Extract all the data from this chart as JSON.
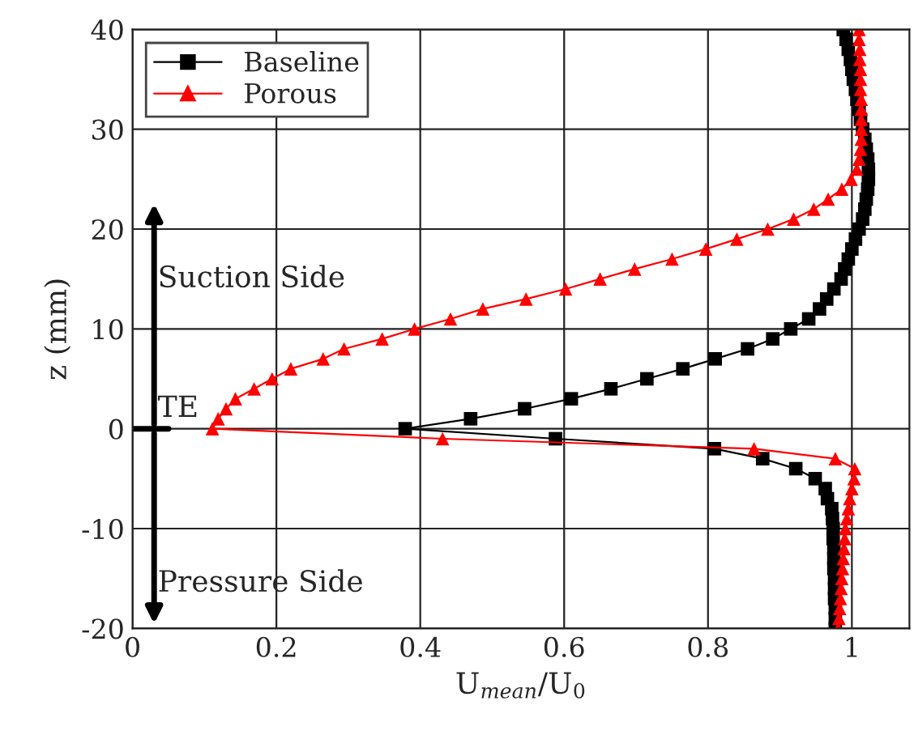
{
  "chart_data": {
    "type": "line",
    "xlabel": "U$_{mean}$/U$_{0}$",
    "ylabel": "z (mm)",
    "xlim": [
      0,
      1.08
    ],
    "xticks": [
      0,
      0.2,
      0.4,
      0.6,
      0.8,
      1
    ],
    "ylim": [
      -20,
      40
    ],
    "yticks": [
      -20,
      -10,
      0,
      10,
      20,
      30,
      40
    ],
    "grid": true,
    "legend": "top left",
    "line_style": "solid",
    "annotations": [
      "Suction Side",
      "Pressure Side",
      "TE"
    ],
    "series": [
      {
        "name": "Baseline",
        "color": "#000000",
        "marker": "square",
        "x": [
          0.977,
          0.977,
          0.977,
          0.976,
          0.976,
          0.976,
          0.975,
          0.975,
          0.975,
          0.974,
          0.974,
          0.973,
          0.972,
          0.966,
          0.963,
          0.949,
          0.922,
          0.876,
          0.809,
          0.588,
          0.379,
          0.47,
          0.545,
          0.61,
          0.665,
          0.715,
          0.765,
          0.81,
          0.855,
          0.89,
          0.915,
          0.94,
          0.955,
          0.965,
          0.975,
          0.985,
          0.99,
          0.995,
          1.0,
          1.005,
          1.01,
          1.015,
          1.018,
          1.02,
          1.022,
          1.023,
          1.023,
          1.022,
          1.02,
          1.018,
          1.015,
          1.012,
          1.01,
          1.007,
          1.005,
          1.002,
          1.0,
          0.998,
          0.995,
          0.992,
          0.988
        ],
        "values": [
          -20,
          -19,
          -18,
          -17,
          -16,
          -15,
          -14,
          -13,
          -12,
          -11,
          -10,
          -9,
          -8,
          -7,
          -6,
          -5,
          -4,
          -3,
          -2,
          -1,
          0,
          1,
          2,
          3,
          4,
          5,
          6,
          7,
          8,
          9,
          10,
          11,
          12,
          13,
          14,
          15,
          16,
          17,
          18,
          19,
          20,
          21,
          22,
          23,
          24,
          25,
          26,
          27,
          28,
          29,
          30,
          31,
          32,
          33,
          34,
          35,
          36,
          37,
          38,
          39,
          40
        ]
      },
      {
        "name": "Porous",
        "color": "#ff0000",
        "marker": "triangle",
        "x": [
          0.981,
          0.982,
          0.983,
          0.984,
          0.985,
          0.986,
          0.987,
          0.988,
          0.989,
          0.99,
          0.991,
          0.993,
          0.995,
          0.997,
          1.0,
          1.003,
          1.004,
          0.977,
          0.864,
          0.431,
          0.111,
          0.119,
          0.13,
          0.143,
          0.169,
          0.194,
          0.22,
          0.265,
          0.294,
          0.347,
          0.392,
          0.442,
          0.487,
          0.547,
          0.602,
          0.65,
          0.698,
          0.75,
          0.797,
          0.84,
          0.883,
          0.919,
          0.947,
          0.967,
          0.986,
          0.999,
          1.007,
          1.01,
          1.012,
          1.013,
          1.013,
          1.013,
          1.013,
          1.013,
          1.012,
          1.012,
          1.012,
          1.011,
          1.011,
          1.01,
          1.01
        ],
        "values": [
          -20,
          -19,
          -18,
          -17,
          -16,
          -15,
          -14,
          -13,
          -12,
          -11,
          -10,
          -9,
          -8,
          -7,
          -6,
          -5,
          -4,
          -3,
          -2,
          -1,
          0,
          1,
          2,
          3,
          4,
          5,
          6,
          7,
          8,
          9,
          10,
          11,
          12,
          13,
          14,
          15,
          16,
          17,
          18,
          19,
          20,
          21,
          22,
          23,
          24,
          25,
          26,
          27,
          28,
          29,
          30,
          31,
          32,
          33,
          34,
          35,
          36,
          37,
          38,
          39,
          40
        ]
      }
    ]
  }
}
